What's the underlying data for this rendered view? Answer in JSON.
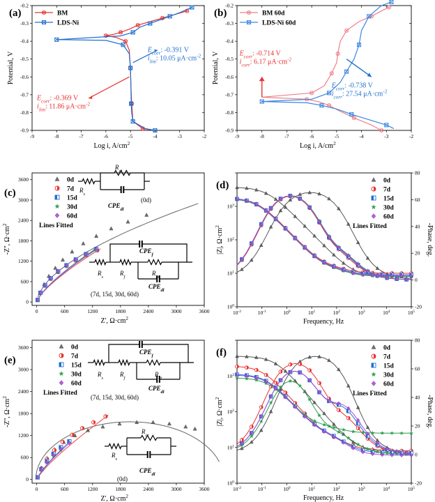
{
  "colors": {
    "red": "#e8312f",
    "blue": "#1f6fd1",
    "gray": "#555555",
    "green": "#2e9e4e",
    "violet": "#a94fd8",
    "pink": "#f07f8a",
    "lightblue": "#3a86e0",
    "fitted": "#444444"
  },
  "chart_data": [
    {
      "panel": "a",
      "type": "line",
      "xlabel": "Log i, A/cm2",
      "ylabel": "Potential, V",
      "xlim": [
        -9,
        -2
      ],
      "ylim": [
        -0.9,
        -0.2
      ],
      "xticks": [
        -9,
        -8,
        -7,
        -6,
        -5,
        -4,
        -3,
        -2
      ],
      "yticks": [
        -0.2,
        -0.3,
        -0.4,
        -0.5,
        -0.6,
        -0.7,
        -0.8,
        -0.9
      ],
      "legend": [
        "BM",
        "LDS-Ni"
      ],
      "series": [
        {
          "name": "BM",
          "color": "red",
          "x": [
            -2.7,
            -3.2,
            -3.7,
            -4.2,
            -4.7,
            -5.0,
            -5.4,
            -5.7,
            -6.0,
            -5.6,
            -5.2,
            -5.05,
            -5.0,
            -4.98,
            -4.95,
            -4.9,
            -4.5,
            -4.0
          ],
          "y": [
            -0.23,
            -0.25,
            -0.27,
            -0.29,
            -0.31,
            -0.33,
            -0.35,
            -0.362,
            -0.369,
            -0.378,
            -0.4,
            -0.45,
            -0.55,
            -0.65,
            -0.75,
            -0.85,
            -0.89,
            -0.9
          ]
        },
        {
          "name": "LDS-Ni",
          "color": "blue",
          "x": [
            -2.5,
            -3.0,
            -3.4,
            -3.8,
            -4.2,
            -4.6,
            -4.9,
            -5.4,
            -8.0,
            -6.0,
            -5.3,
            -5.05,
            -5.0,
            -4.98,
            -4.97,
            -4.95,
            -4.9,
            -4.4,
            -4.0
          ],
          "y": [
            -0.21,
            -0.24,
            -0.26,
            -0.28,
            -0.3,
            -0.32,
            -0.35,
            -0.37,
            -0.391,
            -0.395,
            -0.42,
            -0.47,
            -0.55,
            -0.65,
            -0.75,
            -0.8,
            -0.85,
            -0.89,
            -0.9
          ]
        }
      ],
      "annotations": [
        {
          "color": "blue",
          "lines": [
            "Ecorr: -0.391 V",
            "ilim: 10.05 μA·cm-2"
          ]
        },
        {
          "color": "red",
          "lines": [
            "Ecorr: -0.369 V",
            "ilim: 11.86 μA·cm-2"
          ]
        }
      ]
    },
    {
      "panel": "b",
      "type": "line",
      "xlabel": "Log i, A/cm2",
      "ylabel": "Potential, V",
      "xlim": [
        -9,
        -2
      ],
      "ylim": [
        -0.9,
        -0.2
      ],
      "xticks": [
        -9,
        -8,
        -7,
        -6,
        -5,
        -4,
        -3,
        -2
      ],
      "yticks": [
        -0.2,
        -0.3,
        -0.4,
        -0.5,
        -0.6,
        -0.7,
        -0.8,
        -0.9
      ],
      "legend": [
        "BM 60d",
        "LDS-Ni 60d"
      ],
      "series": [
        {
          "name": "BM 60d",
          "color": "pink",
          "x": [
            -2.9,
            -3.2,
            -3.6,
            -4.1,
            -4.6,
            -4.85,
            -4.95,
            -5.0,
            -5.2,
            -5.5,
            -6.0,
            -8.0,
            -6.2,
            -5.7,
            -5.3,
            -4.9,
            -4.3,
            -3.6,
            -3.2
          ],
          "y": [
            -0.21,
            -0.23,
            -0.26,
            -0.29,
            -0.34,
            -0.4,
            -0.47,
            -0.52,
            -0.58,
            -0.65,
            -0.69,
            -0.714,
            -0.725,
            -0.74,
            -0.76,
            -0.79,
            -0.83,
            -0.87,
            -0.9
          ]
        },
        {
          "name": "LDS-Ni 60d",
          "color": "lightblue",
          "x": [
            -2.8,
            -3.2,
            -3.7,
            -4.0,
            -4.1,
            -4.3,
            -4.6,
            -4.85,
            -5.3,
            -6.0,
            -8.0,
            -6.2,
            -5.6,
            -5.0,
            -4.4,
            -3.7,
            -3.0,
            -2.7
          ],
          "y": [
            -0.18,
            -0.2,
            -0.26,
            -0.34,
            -0.42,
            -0.5,
            -0.57,
            -0.63,
            -0.69,
            -0.725,
            -0.738,
            -0.745,
            -0.76,
            -0.78,
            -0.81,
            -0.84,
            -0.87,
            -0.89
          ]
        }
      ],
      "annotations": [
        {
          "color": "red",
          "lines": [
            "Ecorr: -0.714 V",
            "icorr: 6.17 μA·cm-2"
          ]
        },
        {
          "color": "blue",
          "lines": [
            "Ecorr: -0.738 V",
            "icorr: 27.54 μA·cm-2"
          ]
        }
      ]
    },
    {
      "panel": "c",
      "type": "scatter",
      "xlabel": "Z', Ω·cm2",
      "ylabel": "-Z'', Ω·cm2",
      "xlim": [
        -100,
        3600
      ],
      "ylim": [
        -100,
        3800
      ],
      "xticks": [
        0,
        600,
        1200,
        1800,
        2400,
        3000,
        3600
      ],
      "yticks": [
        0,
        600,
        1200,
        1800,
        2400,
        3000,
        3600
      ],
      "legend": [
        "0d",
        "7d",
        "15d",
        "30d",
        "60d"
      ],
      "fit_label": "Lines  Fitted",
      "series": [
        {
          "name": "0d",
          "color": "gray",
          "x": [
            20,
            80,
            160,
            260,
            400,
            560,
            760,
            1000,
            1280,
            1600,
            1960,
            2360
          ],
          "y": [
            60,
            280,
            520,
            760,
            1000,
            1240,
            1480,
            1720,
            1940,
            2160,
            2360,
            2560
          ]
        },
        {
          "name": "7d",
          "color": "red",
          "x": [
            20,
            80,
            180,
            300,
            460,
            640,
            840,
            1060,
            1300
          ],
          "y": [
            60,
            260,
            480,
            680,
            880,
            1060,
            1220,
            1380,
            1520
          ]
        },
        {
          "name": "15d",
          "color": "blue",
          "x": [
            20,
            80,
            180,
            300,
            460,
            640,
            840,
            1060,
            1280
          ],
          "y": [
            60,
            270,
            490,
            700,
            900,
            1080,
            1250,
            1410,
            1560
          ]
        },
        {
          "name": "30d",
          "color": "green",
          "x": [
            20,
            80,
            180,
            300,
            460,
            640,
            840,
            1060,
            1250
          ],
          "y": [
            60,
            265,
            485,
            690,
            890,
            1070,
            1240,
            1400,
            1530
          ]
        },
        {
          "name": "60d",
          "color": "violet",
          "x": [
            20,
            80,
            180,
            300,
            460,
            640,
            840,
            1060,
            1280
          ],
          "y": [
            60,
            275,
            495,
            705,
            905,
            1085,
            1255,
            1415,
            1550
          ]
        }
      ],
      "circuit_top": {
        "labels": [
          "Rs",
          "Rct",
          "CPEdl"
        ],
        "caption": "(0d)"
      },
      "circuit_bottom": {
        "labels": [
          "CPEf",
          "Rs",
          "Rf",
          "Rct",
          "CPEdl"
        ],
        "caption": "(7d, 15d, 30d, 60d)"
      }
    },
    {
      "panel": "d",
      "type": "scatter",
      "xlabel": "Frequency, Hz",
      "ylabel": "|Z|, Ω·cm2",
      "y2label": "-Phase, deg.",
      "xlim_log10": [
        -2,
        5
      ],
      "ylim_log10": [
        0,
        4
      ],
      "y2lim": [
        -20,
        80
      ],
      "xtick_labels": [
        "10-2",
        "10-1",
        "100",
        "101",
        "102",
        "103",
        "104",
        "105"
      ],
      "ytick_labels": [
        "100",
        "101",
        "102",
        "103"
      ],
      "y2ticks": [
        -20,
        0,
        20,
        40,
        60,
        80
      ],
      "legend": [
        "0d",
        "7d",
        "15d",
        "30d",
        "60d"
      ],
      "fit_label": "Lines  Fitted"
    },
    {
      "panel": "e",
      "type": "scatter",
      "xlabel": "Z', Ω·cm2",
      "ylabel": "-Z'', Ω·cm2",
      "xlim": [
        -100,
        3600
      ],
      "ylim": [
        -100,
        3800
      ],
      "xticks": [
        0,
        600,
        1200,
        1800,
        2400,
        3000,
        3600
      ],
      "yticks": [
        0,
        600,
        1200,
        1800,
        2400,
        3000,
        3600
      ],
      "legend": [
        "0d",
        "7d",
        "15d",
        "30d",
        "60d"
      ],
      "fit_label": "Lines  Fitted",
      "series": [
        {
          "name": "0d",
          "color": "gray",
          "x": [
            20,
            100,
            220,
            380,
            580,
            820,
            1100,
            1420,
            1780,
            2150,
            2500,
            2850,
            3200,
            3400
          ],
          "y": [
            60,
            320,
            580,
            820,
            1020,
            1200,
            1340,
            1440,
            1520,
            1560,
            1560,
            1520,
            1440,
            1380
          ]
        },
        {
          "name": "7d",
          "color": "red",
          "x": [
            20,
            100,
            220,
            380,
            560,
            760,
            980,
            1220,
            1480
          ],
          "y": [
            60,
            300,
            560,
            800,
            1020,
            1220,
            1400,
            1560,
            1720
          ]
        },
        {
          "name": "15d",
          "color": "blue",
          "x": [
            20,
            100,
            220,
            360,
            520,
            700
          ],
          "y": [
            60,
            280,
            500,
            700,
            880,
            1040
          ]
        },
        {
          "name": "30d",
          "color": "green",
          "x": [
            20,
            100,
            220,
            360,
            520
          ],
          "y": [
            60,
            260,
            460,
            640,
            800
          ]
        },
        {
          "name": "60d",
          "color": "violet",
          "x": [
            20,
            100,
            220,
            360,
            520,
            700
          ],
          "y": [
            60,
            270,
            480,
            670,
            840,
            1000
          ]
        }
      ],
      "circuit_top": {
        "labels": [
          "CPEf",
          "Rs",
          "Rf",
          "Rct",
          "CPEdl"
        ],
        "caption": "(7d, 15d, 30d, 60d)"
      },
      "circuit_bottom": {
        "labels": [
          "Rct",
          "Rs",
          "CPEdl"
        ],
        "caption": "(0d)"
      }
    },
    {
      "panel": "f",
      "type": "scatter",
      "xlabel": "Frequency, Hz",
      "ylabel": "|Z|, Ω·cm2",
      "y2label": "-Phase, deg.",
      "xlim_log10": [
        -2,
        5
      ],
      "ylim_log10": [
        0,
        4
      ],
      "y2lim": [
        -20,
        80
      ],
      "xtick_labels": [
        "10-2",
        "10-1",
        "100",
        "101",
        "102",
        "103",
        "104",
        "105"
      ],
      "ytick_labels": [
        "100",
        "101",
        "102",
        "103"
      ],
      "y2ticks": [
        -20,
        0,
        20,
        40,
        60,
        80
      ],
      "legend": [
        "0d",
        "7d",
        "15d",
        "30d",
        "60d"
      ],
      "fit_label": "Lines  Fitted"
    }
  ]
}
